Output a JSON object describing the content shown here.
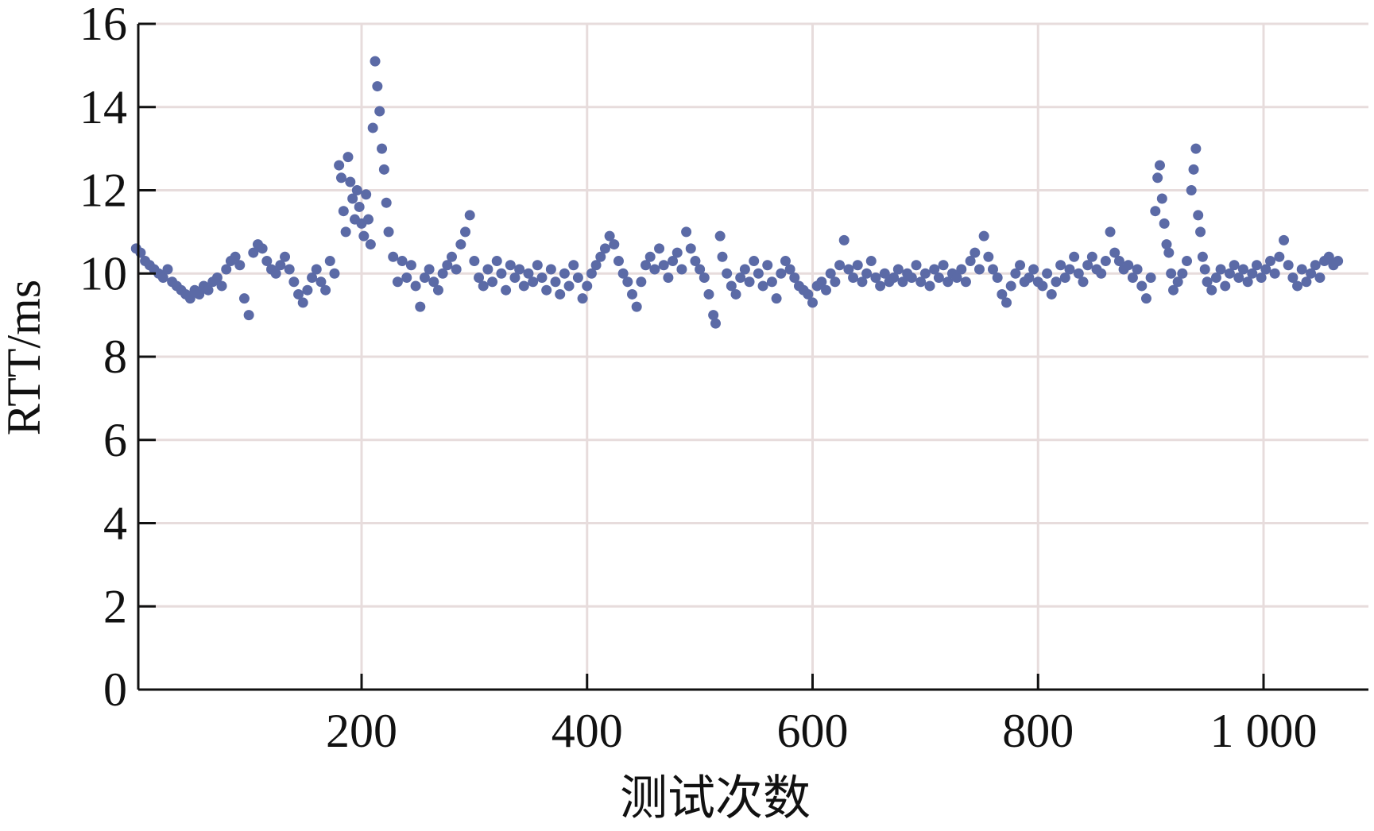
{
  "chart_data": {
    "type": "scatter",
    "title": "",
    "xlabel": "测试次数",
    "ylabel": "RTT/ms",
    "xlim": [
      0,
      1100
    ],
    "ylim": [
      0,
      16
    ],
    "x_ticks": [
      {
        "value": 200,
        "label": "200"
      },
      {
        "value": 400,
        "label": "400"
      },
      {
        "value": 600,
        "label": "600"
      },
      {
        "value": 800,
        "label": "800"
      },
      {
        "value": 1000,
        "label": "1 000"
      }
    ],
    "y_ticks": [
      {
        "value": 0,
        "label": "0"
      },
      {
        "value": 2,
        "label": "2"
      },
      {
        "value": 4,
        "label": "4"
      },
      {
        "value": 6,
        "label": "6"
      },
      {
        "value": 8,
        "label": "8"
      },
      {
        "value": 10,
        "label": "10"
      },
      {
        "value": 12,
        "label": "12"
      },
      {
        "value": 14,
        "label": "14"
      },
      {
        "value": 16,
        "label": "16"
      }
    ],
    "grid": true,
    "marker_color": "#5b6aa6",
    "series": [
      {
        "points": [
          [
            0,
            10.6
          ],
          [
            4,
            10.5
          ],
          [
            8,
            10.3
          ],
          [
            12,
            10.2
          ],
          [
            16,
            10.1
          ],
          [
            20,
            10.0
          ],
          [
            24,
            9.9
          ],
          [
            28,
            10.1
          ],
          [
            32,
            9.8
          ],
          [
            36,
            9.7
          ],
          [
            40,
            9.6
          ],
          [
            44,
            9.5
          ],
          [
            48,
            9.4
          ],
          [
            52,
            9.6
          ],
          [
            56,
            9.5
          ],
          [
            60,
            9.7
          ],
          [
            64,
            9.6
          ],
          [
            68,
            9.8
          ],
          [
            72,
            9.9
          ],
          [
            76,
            9.7
          ],
          [
            80,
            10.1
          ],
          [
            84,
            10.3
          ],
          [
            88,
            10.4
          ],
          [
            92,
            10.2
          ],
          [
            96,
            9.4
          ],
          [
            100,
            9.0
          ],
          [
            104,
            10.5
          ],
          [
            108,
            10.7
          ],
          [
            112,
            10.6
          ],
          [
            116,
            10.3
          ],
          [
            120,
            10.1
          ],
          [
            124,
            10.0
          ],
          [
            128,
            10.2
          ],
          [
            132,
            10.4
          ],
          [
            136,
            10.1
          ],
          [
            140,
            9.8
          ],
          [
            144,
            9.5
          ],
          [
            148,
            9.3
          ],
          [
            152,
            9.6
          ],
          [
            156,
            9.9
          ],
          [
            160,
            10.1
          ],
          [
            164,
            9.8
          ],
          [
            168,
            9.6
          ],
          [
            172,
            10.3
          ],
          [
            176,
            10.0
          ],
          [
            180,
            12.6
          ],
          [
            182,
            12.3
          ],
          [
            184,
            11.5
          ],
          [
            186,
            11.0
          ],
          [
            188,
            12.8
          ],
          [
            190,
            12.2
          ],
          [
            192,
            11.8
          ],
          [
            194,
            11.3
          ],
          [
            196,
            12.0
          ],
          [
            198,
            11.6
          ],
          [
            200,
            11.2
          ],
          [
            202,
            10.9
          ],
          [
            204,
            11.9
          ],
          [
            206,
            11.3
          ],
          [
            208,
            10.7
          ],
          [
            210,
            13.5
          ],
          [
            212,
            15.1
          ],
          [
            214,
            14.5
          ],
          [
            216,
            13.9
          ],
          [
            218,
            13.0
          ],
          [
            220,
            12.5
          ],
          [
            222,
            11.7
          ],
          [
            224,
            11.0
          ],
          [
            228,
            10.4
          ],
          [
            232,
            9.8
          ],
          [
            236,
            10.3
          ],
          [
            240,
            9.9
          ],
          [
            244,
            10.2
          ],
          [
            248,
            9.7
          ],
          [
            252,
            9.2
          ],
          [
            256,
            9.9
          ],
          [
            260,
            10.1
          ],
          [
            264,
            9.8
          ],
          [
            268,
            9.6
          ],
          [
            272,
            10.0
          ],
          [
            276,
            10.2
          ],
          [
            280,
            10.4
          ],
          [
            284,
            10.1
          ],
          [
            288,
            10.7
          ],
          [
            292,
            11.0
          ],
          [
            296,
            11.4
          ],
          [
            300,
            10.3
          ],
          [
            304,
            9.9
          ],
          [
            308,
            9.7
          ],
          [
            312,
            10.1
          ],
          [
            316,
            9.8
          ],
          [
            320,
            10.3
          ],
          [
            324,
            10.0
          ],
          [
            328,
            9.6
          ],
          [
            332,
            10.2
          ],
          [
            336,
            9.9
          ],
          [
            340,
            10.1
          ],
          [
            344,
            9.7
          ],
          [
            348,
            10.0
          ],
          [
            352,
            9.8
          ],
          [
            356,
            10.2
          ],
          [
            360,
            9.9
          ],
          [
            364,
            9.6
          ],
          [
            368,
            10.1
          ],
          [
            372,
            9.8
          ],
          [
            376,
            9.5
          ],
          [
            380,
            10.0
          ],
          [
            384,
            9.7
          ],
          [
            388,
            10.2
          ],
          [
            392,
            9.9
          ],
          [
            396,
            9.4
          ],
          [
            400,
            9.7
          ],
          [
            404,
            10.0
          ],
          [
            408,
            10.2
          ],
          [
            412,
            10.4
          ],
          [
            416,
            10.6
          ],
          [
            420,
            10.9
          ],
          [
            424,
            10.7
          ],
          [
            428,
            10.3
          ],
          [
            432,
            10.0
          ],
          [
            436,
            9.8
          ],
          [
            440,
            9.5
          ],
          [
            444,
            9.2
          ],
          [
            448,
            9.8
          ],
          [
            452,
            10.2
          ],
          [
            456,
            10.4
          ],
          [
            460,
            10.1
          ],
          [
            464,
            10.6
          ],
          [
            468,
            10.2
          ],
          [
            472,
            9.9
          ],
          [
            476,
            10.3
          ],
          [
            480,
            10.5
          ],
          [
            484,
            10.1
          ],
          [
            488,
            11.0
          ],
          [
            492,
            10.6
          ],
          [
            496,
            10.3
          ],
          [
            500,
            10.1
          ],
          [
            504,
            9.9
          ],
          [
            508,
            9.5
          ],
          [
            512,
            9.0
          ],
          [
            514,
            8.8
          ],
          [
            518,
            10.9
          ],
          [
            520,
            10.4
          ],
          [
            524,
            10.0
          ],
          [
            528,
            9.7
          ],
          [
            532,
            9.5
          ],
          [
            536,
            9.9
          ],
          [
            540,
            10.1
          ],
          [
            544,
            9.8
          ],
          [
            548,
            10.3
          ],
          [
            552,
            10.0
          ],
          [
            556,
            9.7
          ],
          [
            560,
            10.2
          ],
          [
            564,
            9.8
          ],
          [
            568,
            9.4
          ],
          [
            572,
            10.0
          ],
          [
            576,
            10.3
          ],
          [
            580,
            10.1
          ],
          [
            584,
            9.9
          ],
          [
            588,
            9.7
          ],
          [
            592,
            9.6
          ],
          [
            596,
            9.5
          ],
          [
            600,
            9.3
          ],
          [
            604,
            9.7
          ],
          [
            608,
            9.8
          ],
          [
            612,
            9.6
          ],
          [
            616,
            10.0
          ],
          [
            620,
            9.8
          ],
          [
            624,
            10.2
          ],
          [
            628,
            10.8
          ],
          [
            632,
            10.1
          ],
          [
            636,
            9.9
          ],
          [
            640,
            10.2
          ],
          [
            644,
            9.8
          ],
          [
            648,
            10.0
          ],
          [
            652,
            10.3
          ],
          [
            656,
            9.9
          ],
          [
            660,
            9.7
          ],
          [
            664,
            10.0
          ],
          [
            668,
            9.8
          ],
          [
            672,
            9.9
          ],
          [
            676,
            10.1
          ],
          [
            680,
            9.8
          ],
          [
            684,
            10.0
          ],
          [
            688,
            9.9
          ],
          [
            692,
            10.2
          ],
          [
            696,
            9.8
          ],
          [
            700,
            10.0
          ],
          [
            704,
            9.7
          ],
          [
            708,
            10.1
          ],
          [
            712,
            9.9
          ],
          [
            716,
            10.2
          ],
          [
            720,
            9.8
          ],
          [
            724,
            10.0
          ],
          [
            728,
            9.9
          ],
          [
            732,
            10.1
          ],
          [
            736,
            9.8
          ],
          [
            740,
            10.3
          ],
          [
            744,
            10.5
          ],
          [
            748,
            10.1
          ],
          [
            752,
            10.9
          ],
          [
            756,
            10.4
          ],
          [
            760,
            10.1
          ],
          [
            764,
            9.9
          ],
          [
            768,
            9.5
          ],
          [
            772,
            9.3
          ],
          [
            776,
            9.7
          ],
          [
            780,
            10.0
          ],
          [
            784,
            10.2
          ],
          [
            788,
            9.8
          ],
          [
            792,
            9.9
          ],
          [
            796,
            10.1
          ],
          [
            800,
            9.8
          ],
          [
            804,
            9.7
          ],
          [
            808,
            10.0
          ],
          [
            812,
            9.5
          ],
          [
            816,
            9.8
          ],
          [
            820,
            10.2
          ],
          [
            824,
            9.9
          ],
          [
            828,
            10.1
          ],
          [
            832,
            10.4
          ],
          [
            836,
            10.0
          ],
          [
            840,
            9.8
          ],
          [
            844,
            10.2
          ],
          [
            848,
            10.4
          ],
          [
            852,
            10.1
          ],
          [
            856,
            10.0
          ],
          [
            860,
            10.3
          ],
          [
            864,
            11.0
          ],
          [
            868,
            10.5
          ],
          [
            872,
            10.3
          ],
          [
            876,
            10.1
          ],
          [
            880,
            10.2
          ],
          [
            884,
            9.9
          ],
          [
            888,
            10.1
          ],
          [
            892,
            9.7
          ],
          [
            896,
            9.4
          ],
          [
            900,
            9.9
          ],
          [
            904,
            11.5
          ],
          [
            906,
            12.3
          ],
          [
            908,
            12.6
          ],
          [
            910,
            11.8
          ],
          [
            912,
            11.2
          ],
          [
            914,
            10.7
          ],
          [
            916,
            10.5
          ],
          [
            918,
            10.0
          ],
          [
            920,
            9.6
          ],
          [
            924,
            9.8
          ],
          [
            928,
            10.0
          ],
          [
            932,
            10.3
          ],
          [
            936,
            12.0
          ],
          [
            938,
            12.5
          ],
          [
            940,
            13.0
          ],
          [
            942,
            11.4
          ],
          [
            944,
            11.0
          ],
          [
            946,
            10.4
          ],
          [
            948,
            10.1
          ],
          [
            950,
            9.8
          ],
          [
            954,
            9.6
          ],
          [
            958,
            9.9
          ],
          [
            962,
            10.1
          ],
          [
            966,
            9.7
          ],
          [
            970,
            10.0
          ],
          [
            974,
            10.2
          ],
          [
            978,
            9.9
          ],
          [
            982,
            10.1
          ],
          [
            986,
            9.8
          ],
          [
            990,
            10.0
          ],
          [
            994,
            10.2
          ],
          [
            998,
            9.9
          ],
          [
            1002,
            10.1
          ],
          [
            1006,
            10.3
          ],
          [
            1010,
            10.0
          ],
          [
            1014,
            10.4
          ],
          [
            1018,
            10.8
          ],
          [
            1022,
            10.2
          ],
          [
            1026,
            9.9
          ],
          [
            1030,
            9.7
          ],
          [
            1034,
            10.1
          ],
          [
            1038,
            9.8
          ],
          [
            1042,
            10.0
          ],
          [
            1046,
            10.2
          ],
          [
            1050,
            9.9
          ],
          [
            1054,
            10.3
          ],
          [
            1058,
            10.4
          ],
          [
            1062,
            10.2
          ],
          [
            1066,
            10.3
          ]
        ]
      }
    ]
  }
}
